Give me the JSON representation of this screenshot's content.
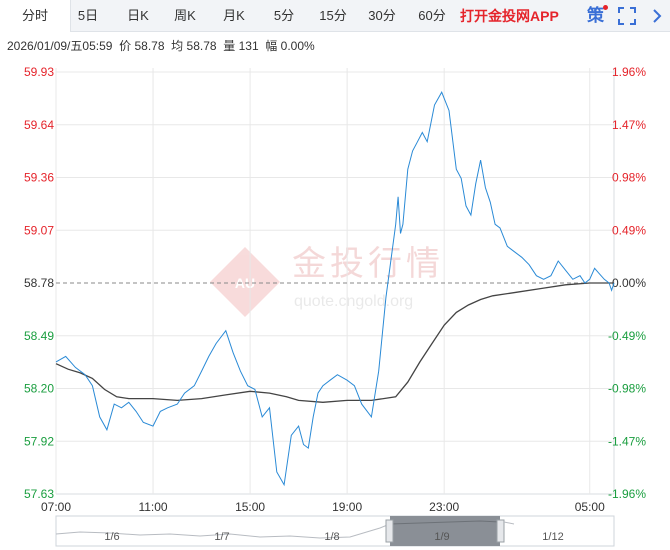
{
  "tabs": [
    {
      "label": "分时",
      "active": true
    },
    {
      "label": "5日"
    },
    {
      "label": "日K"
    },
    {
      "label": "周K"
    },
    {
      "label": "月K"
    },
    {
      "label": "5分"
    },
    {
      "label": "15分"
    },
    {
      "label": "30分"
    },
    {
      "label": "60分"
    }
  ],
  "promo_label": "打开金投网APP",
  "strategy_label": "策",
  "info": {
    "datetime": "2026/01/09/五05:59",
    "price_label": "价",
    "price": "58.78",
    "avg_label": "均",
    "avg": "58.78",
    "volume_label": "量",
    "volume": "131",
    "amplitude_label": "幅",
    "amplitude": "0.00%"
  },
  "watermark": {
    "brand_cn": "金投行情",
    "url": "quote.cngold.org",
    "logo_text": "AU"
  },
  "colors": {
    "up": "#e5242b",
    "down": "#1a9e3f",
    "price_line": "#2a8ad6",
    "avg_line": "#444444",
    "prevclose_line": "#888888",
    "grid": "#e8e8e8"
  },
  "chart_data": {
    "type": "line",
    "prev_close": 58.78,
    "y_ticks_left": [
      "59.93",
      "59.64",
      "59.36",
      "59.07",
      "58.78",
      "58.49",
      "58.20",
      "57.92",
      "57.63"
    ],
    "y_ticks_right": [
      "1.96%",
      "1.47%",
      "0.98%",
      "0.49%",
      "0.00%",
      "-0.49%",
      "-0.98%",
      "-1.47%",
      "-1.96%"
    ],
    "ylim": [
      57.63,
      59.93
    ],
    "x_ticks": [
      "07:00",
      "11:00",
      "15:00",
      "19:00",
      "23:00",
      "05:00"
    ],
    "x_tick_hours": [
      0,
      4,
      8,
      12,
      16,
      22
    ],
    "x_range_hours": [
      0,
      23
    ],
    "series": [
      {
        "hours": [
          0,
          0.4,
          0.8,
          1.2,
          1.5,
          1.8,
          2.1,
          2.4,
          2.7,
          3.0,
          3.3,
          3.6,
          4.0,
          4.3,
          4.6,
          5.0,
          5.3,
          5.7,
          6.0,
          6.3,
          6.6,
          7.0,
          7.3,
          7.6,
          7.9,
          8.2,
          8.5,
          8.8,
          9.1,
          9.4,
          9.7,
          10.0,
          10.2,
          10.4,
          10.6,
          10.8,
          11.0,
          11.3,
          11.6,
          12.0,
          12.3,
          12.6,
          13.0,
          13.3,
          13.6,
          14.0,
          14.1,
          14.2,
          14.3,
          14.5,
          14.7,
          14.9,
          15.1,
          15.3,
          15.6,
          15.9,
          16.2,
          16.5,
          16.7,
          16.9,
          17.1,
          17.3,
          17.5,
          17.7,
          17.9,
          18.1,
          18.3,
          18.6,
          18.9,
          19.2,
          19.5,
          19.8,
          20.1,
          20.4,
          20.7,
          21.0,
          21.3,
          21.6,
          21.8,
          22.0,
          22.2,
          22.4,
          22.6,
          22.8,
          22.9,
          23.0
        ],
        "values": [
          58.35,
          58.38,
          58.32,
          58.28,
          58.22,
          58.05,
          57.98,
          58.12,
          58.1,
          58.13,
          58.08,
          58.02,
          58.0,
          58.08,
          58.1,
          58.12,
          58.18,
          58.22,
          58.3,
          58.38,
          58.45,
          58.52,
          58.4,
          58.3,
          58.22,
          58.2,
          58.05,
          58.1,
          57.75,
          57.68,
          57.95,
          58.0,
          57.9,
          57.88,
          58.05,
          58.18,
          58.22,
          58.25,
          58.28,
          58.25,
          58.22,
          58.12,
          58.05,
          58.3,
          58.7,
          59.1,
          59.25,
          59.05,
          59.1,
          59.4,
          59.5,
          59.55,
          59.6,
          59.55,
          59.75,
          59.82,
          59.72,
          59.4,
          59.35,
          59.2,
          59.15,
          59.32,
          59.45,
          59.3,
          59.22,
          59.1,
          59.08,
          58.98,
          58.95,
          58.92,
          58.88,
          58.82,
          58.8,
          58.82,
          58.9,
          58.85,
          58.8,
          58.82,
          58.78,
          58.8,
          58.86,
          58.83,
          58.8,
          58.78,
          58.74,
          58.78
        ]
      },
      {
        "name": "均",
        "hours": [
          0,
          0.5,
          1.0,
          1.5,
          2.0,
          2.5,
          3.0,
          4.0,
          5.0,
          6.0,
          7.0,
          8.0,
          8.8,
          9.5,
          10.0,
          11.0,
          12.0,
          13.0,
          14.0,
          14.5,
          15.0,
          15.5,
          16.0,
          16.5,
          17.0,
          17.5,
          18.0,
          19.0,
          20.0,
          21.0,
          22.0,
          23.0
        ],
        "values": [
          58.34,
          58.31,
          58.29,
          58.26,
          58.2,
          58.16,
          58.15,
          58.15,
          58.14,
          58.15,
          58.17,
          58.19,
          58.18,
          58.16,
          58.14,
          58.13,
          58.14,
          58.14,
          58.16,
          58.24,
          58.35,
          58.45,
          58.55,
          58.62,
          58.66,
          58.69,
          58.71,
          58.73,
          58.75,
          58.77,
          58.78,
          58.78
        ]
      }
    ]
  },
  "navigator": {
    "x_labels": [
      "1/6",
      "1/7",
      "1/8",
      "1/9",
      "1/12"
    ]
  }
}
